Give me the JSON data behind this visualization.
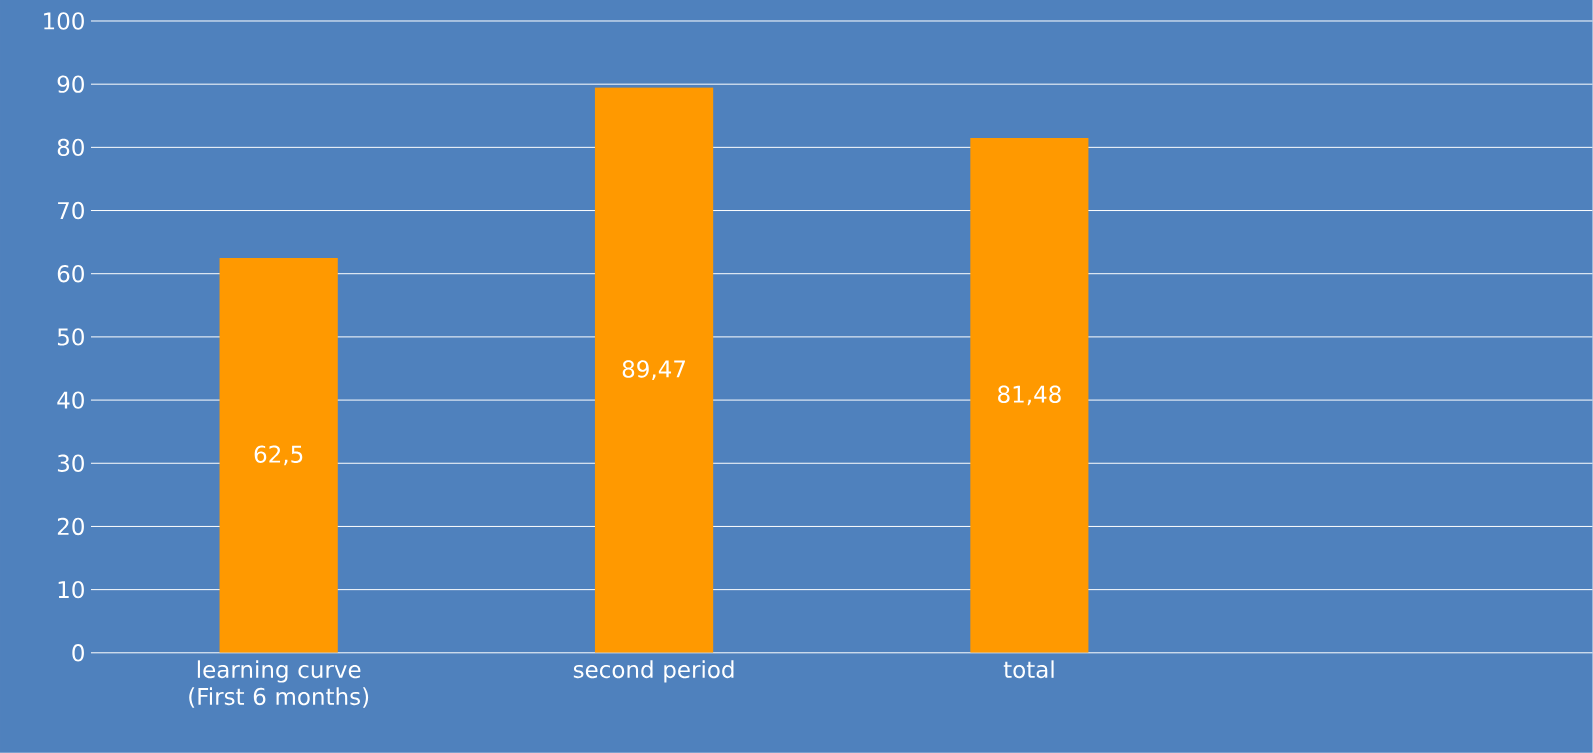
{
  "chart_data": {
    "type": "bar",
    "categories": [
      "learning curve (First 6 months)",
      "second period",
      "total",
      null
    ],
    "values": [
      62.5,
      89.47,
      81.48,
      null
    ],
    "value_labels": [
      "62,5",
      "89,47",
      "81,48",
      null
    ],
    "color": "#ff9900",
    "ylim": [
      0,
      100
    ],
    "yticks": [
      0,
      10,
      20,
      30,
      40,
      50,
      60,
      70,
      80,
      90,
      100
    ],
    "grid": "y"
  }
}
